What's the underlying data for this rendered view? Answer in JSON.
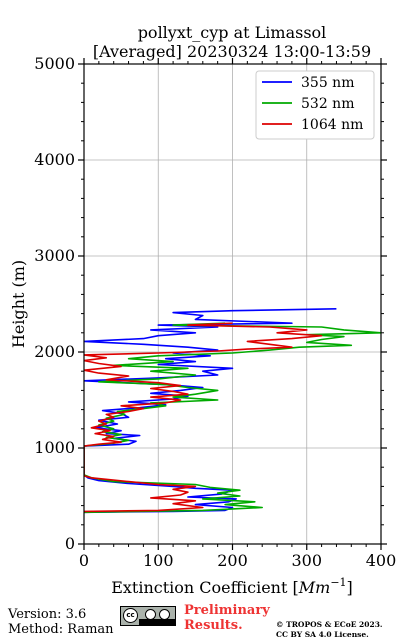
{
  "chart_data": {
    "type": "line",
    "title_line1": "pollyxt_cyp at Limassol",
    "title_line2": "[Averaged] 20230324 13:00-13:59",
    "xlabel_prefix": "Extinction Coefficient [",
    "xlabel_unit": "Mm",
    "xlabel_exp": "−1",
    "xlabel_suffix": "]",
    "ylabel": "Height (m)",
    "xlim": [
      0,
      400
    ],
    "ylim": [
      0,
      5000
    ],
    "xticks": [
      0,
      100,
      200,
      300,
      400
    ],
    "yticks": [
      0,
      1000,
      2000,
      3000,
      4000,
      5000
    ],
    "grid": true,
    "legend_position": "top-right",
    "series": [
      {
        "name": "355 nm",
        "color": "#0000ff",
        "points": [
          [
            0,
            330
          ],
          [
            120,
            340
          ],
          [
            190,
            350
          ],
          [
            200,
            380
          ],
          [
            150,
            410
          ],
          [
            195,
            440
          ],
          [
            205,
            470
          ],
          [
            140,
            490
          ],
          [
            185,
            520
          ],
          [
            200,
            560
          ],
          [
            150,
            580
          ],
          [
            120,
            600
          ],
          [
            60,
            630
          ],
          [
            20,
            660
          ],
          [
            5,
            690
          ],
          [
            0,
            720
          ],
          [
            0,
            1020
          ],
          [
            60,
            1040
          ],
          [
            70,
            1070
          ],
          [
            40,
            1100
          ],
          [
            75,
            1130
          ],
          [
            30,
            1150
          ],
          [
            50,
            1180
          ],
          [
            15,
            1210
          ],
          [
            45,
            1250
          ],
          [
            20,
            1290
          ],
          [
            60,
            1320
          ],
          [
            50,
            1360
          ],
          [
            25,
            1390
          ],
          [
            75,
            1420
          ],
          [
            110,
            1450
          ],
          [
            60,
            1480
          ],
          [
            120,
            1510
          ],
          [
            140,
            1540
          ],
          [
            90,
            1570
          ],
          [
            130,
            1600
          ],
          [
            160,
            1630
          ],
          [
            110,
            1660
          ],
          [
            0,
            1700
          ],
          [
            100,
            1730
          ],
          [
            180,
            1760
          ],
          [
            160,
            1800
          ],
          [
            200,
            1830
          ],
          [
            100,
            1870
          ],
          [
            150,
            1900
          ],
          [
            110,
            1930
          ],
          [
            170,
            1960
          ],
          [
            120,
            1990
          ],
          [
            180,
            2020
          ],
          [
            140,
            2050
          ],
          [
            80,
            2080
          ],
          [
            0,
            2110
          ],
          [
            80,
            2140
          ],
          [
            100,
            2170
          ],
          [
            150,
            2200
          ],
          [
            90,
            2230
          ],
          [
            180,
            2260
          ],
          [
            100,
            2280
          ],
          [
            280,
            2300
          ],
          [
            150,
            2340
          ],
          [
            160,
            2380
          ],
          [
            120,
            2410
          ],
          [
            200,
            2430
          ],
          [
            340,
            2450
          ]
        ]
      },
      {
        "name": "532 nm",
        "color": "#00aa00",
        "points": [
          [
            0,
            330
          ],
          [
            160,
            350
          ],
          [
            240,
            380
          ],
          [
            190,
            410
          ],
          [
            230,
            440
          ],
          [
            160,
            470
          ],
          [
            210,
            500
          ],
          [
            180,
            530
          ],
          [
            210,
            560
          ],
          [
            170,
            590
          ],
          [
            150,
            620
          ],
          [
            40,
            650
          ],
          [
            10,
            690
          ],
          [
            0,
            720
          ],
          [
            0,
            1020
          ],
          [
            40,
            1050
          ],
          [
            60,
            1080
          ],
          [
            30,
            1110
          ],
          [
            50,
            1140
          ],
          [
            25,
            1170
          ],
          [
            40,
            1200
          ],
          [
            20,
            1240
          ],
          [
            40,
            1280
          ],
          [
            30,
            1310
          ],
          [
            55,
            1350
          ],
          [
            45,
            1380
          ],
          [
            80,
            1410
          ],
          [
            110,
            1440
          ],
          [
            90,
            1470
          ],
          [
            180,
            1500
          ],
          [
            120,
            1530
          ],
          [
            150,
            1560
          ],
          [
            180,
            1600
          ],
          [
            140,
            1630
          ],
          [
            110,
            1660
          ],
          [
            20,
            1690
          ],
          [
            100,
            1720
          ],
          [
            150,
            1760
          ],
          [
            90,
            1800
          ],
          [
            140,
            1830
          ],
          [
            40,
            1860
          ],
          [
            120,
            1900
          ],
          [
            60,
            1930
          ],
          [
            100,
            1960
          ],
          [
            200,
            1990
          ],
          [
            250,
            2020
          ],
          [
            290,
            2050
          ],
          [
            360,
            2070
          ],
          [
            300,
            2100
          ],
          [
            320,
            2130
          ],
          [
            350,
            2160
          ],
          [
            300,
            2180
          ],
          [
            400,
            2200
          ],
          [
            350,
            2230
          ],
          [
            320,
            2260
          ],
          [
            120,
            2280
          ],
          [
            190,
            2300
          ]
        ]
      },
      {
        "name": "1064 nm",
        "color": "#dd0000",
        "points": [
          [
            0,
            340
          ],
          [
            100,
            350
          ],
          [
            160,
            380
          ],
          [
            120,
            420
          ],
          [
            150,
            450
          ],
          [
            90,
            480
          ],
          [
            130,
            510
          ],
          [
            140,
            540
          ],
          [
            120,
            570
          ],
          [
            150,
            600
          ],
          [
            100,
            620
          ],
          [
            60,
            650
          ],
          [
            10,
            690
          ],
          [
            0,
            710
          ],
          [
            0,
            1020
          ],
          [
            20,
            1040
          ],
          [
            50,
            1060
          ],
          [
            25,
            1090
          ],
          [
            40,
            1120
          ],
          [
            15,
            1150
          ],
          [
            35,
            1180
          ],
          [
            10,
            1210
          ],
          [
            30,
            1250
          ],
          [
            20,
            1280
          ],
          [
            40,
            1320
          ],
          [
            30,
            1350
          ],
          [
            60,
            1380
          ],
          [
            80,
            1410
          ],
          [
            50,
            1440
          ],
          [
            110,
            1470
          ],
          [
            130,
            1500
          ],
          [
            90,
            1530
          ],
          [
            140,
            1560
          ],
          [
            120,
            1590
          ],
          [
            90,
            1620
          ],
          [
            130,
            1650
          ],
          [
            100,
            1680
          ],
          [
            30,
            1710
          ],
          [
            60,
            1750
          ],
          [
            20,
            1780
          ],
          [
            0,
            1810
          ],
          [
            50,
            1850
          ],
          [
            20,
            1880
          ],
          [
            0,
            1910
          ],
          [
            30,
            1940
          ],
          [
            0,
            1970
          ],
          [
            100,
            1990
          ],
          [
            180,
            2010
          ],
          [
            220,
            2030
          ],
          [
            280,
            2050
          ],
          [
            250,
            2080
          ],
          [
            220,
            2110
          ],
          [
            280,
            2140
          ],
          [
            320,
            2170
          ],
          [
            260,
            2200
          ],
          [
            300,
            2230
          ],
          [
            250,
            2260
          ],
          [
            140,
            2280
          ],
          [
            200,
            2300
          ]
        ]
      }
    ]
  },
  "footer": {
    "version": "Version: 3.6",
    "method": "Method: Raman",
    "prelim_line1": "Preliminary",
    "prelim_line2": "Results.",
    "copyright_line1": "© TROPOS & ECoE 2023.",
    "copyright_line2": "CC BY SA 4.0 License.",
    "cc_badge_text": "cc"
  }
}
